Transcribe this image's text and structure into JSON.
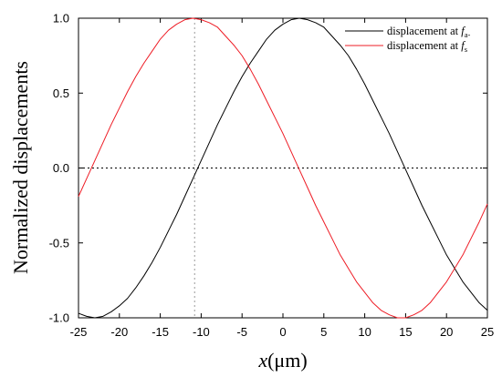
{
  "chart_data": {
    "type": "line",
    "xlabel": {
      "var": "x",
      "open": "(",
      "unit": "μm",
      "close": ")"
    },
    "ylabel": "Normalized displacements",
    "xlim": [
      -25,
      25
    ],
    "ylim": [
      -1.0,
      1.0
    ],
    "x_ticks": [
      -25,
      -20,
      -15,
      -10,
      -5,
      0,
      5,
      10,
      15,
      20,
      25
    ],
    "y_ticks": [
      -1.0,
      -0.5,
      0.0,
      0.5,
      1.0
    ],
    "x_tick_labels": [
      "-25",
      "-20",
      "-15",
      "-10",
      "-5",
      "0",
      "5",
      "10",
      "15",
      "20",
      "25"
    ],
    "y_tick_labels": [
      "-1.0",
      "-0.5",
      "0.0",
      "0.5",
      "1.0"
    ],
    "reference_lines": [
      {
        "orientation": "horizontal",
        "value": 0.0,
        "style": "dotted",
        "color": "#000000"
      },
      {
        "orientation": "vertical",
        "value": -10.8,
        "style": "dotted",
        "color": "#9a9a9a"
      }
    ],
    "legend_position": "top-right",
    "series": [
      {
        "legend_prefix": "displacement at ",
        "legend_var": "f",
        "legend_sub": "a-",
        "color": "#000000",
        "x": [
          -25,
          -24,
          -23,
          -22,
          -21,
          -20,
          -19,
          -18,
          -17,
          -16,
          -15,
          -14,
          -13,
          -12,
          -11,
          -10,
          -9,
          -8,
          -7,
          -6,
          -5,
          -4,
          -3,
          -2,
          -1,
          0,
          1,
          2,
          3,
          4,
          5,
          6,
          7,
          8,
          9,
          10,
          11,
          12,
          13,
          14,
          15,
          16,
          17,
          18,
          19,
          20,
          21,
          22,
          23,
          24,
          25
        ],
        "y": [
          -0.97,
          -0.99,
          -1.0,
          -0.99,
          -0.96,
          -0.92,
          -0.87,
          -0.8,
          -0.72,
          -0.63,
          -0.53,
          -0.42,
          -0.31,
          -0.19,
          -0.07,
          0.05,
          0.17,
          0.29,
          0.4,
          0.51,
          0.61,
          0.7,
          0.78,
          0.86,
          0.92,
          0.96,
          0.99,
          1.0,
          0.99,
          0.97,
          0.94,
          0.88,
          0.82,
          0.75,
          0.66,
          0.56,
          0.45,
          0.34,
          0.23,
          0.11,
          -0.01,
          -0.13,
          -0.25,
          -0.36,
          -0.47,
          -0.58,
          -0.67,
          -0.76,
          -0.83,
          -0.9,
          -0.95
        ]
      },
      {
        "legend_prefix": "displacement at ",
        "legend_var": "f",
        "legend_sub": "s",
        "color": "#ee1c25",
        "x": [
          -25,
          -24,
          -23,
          -22,
          -21,
          -20,
          -19,
          -18,
          -17,
          -16,
          -15,
          -14,
          -13,
          -12,
          -11,
          -10,
          -9,
          -8,
          -7,
          -6,
          -5,
          -4,
          -3,
          -2,
          -1,
          0,
          1,
          2,
          3,
          4,
          5,
          6,
          7,
          8,
          9,
          10,
          11,
          12,
          13,
          14,
          15,
          16,
          17,
          18,
          19,
          20,
          21,
          22,
          23,
          24,
          25
        ],
        "y": [
          -0.19,
          -0.07,
          0.05,
          0.17,
          0.29,
          0.4,
          0.51,
          0.61,
          0.7,
          0.78,
          0.86,
          0.92,
          0.96,
          0.99,
          1.0,
          0.99,
          0.97,
          0.94,
          0.88,
          0.82,
          0.75,
          0.66,
          0.56,
          0.45,
          0.34,
          0.23,
          0.11,
          -0.01,
          -0.13,
          -0.25,
          -0.36,
          -0.47,
          -0.58,
          -0.67,
          -0.76,
          -0.83,
          -0.9,
          -0.95,
          -0.98,
          -1.0,
          -1.0,
          -0.98,
          -0.95,
          -0.9,
          -0.83,
          -0.76,
          -0.67,
          -0.58,
          -0.47,
          -0.36,
          -0.24
        ]
      }
    ]
  }
}
